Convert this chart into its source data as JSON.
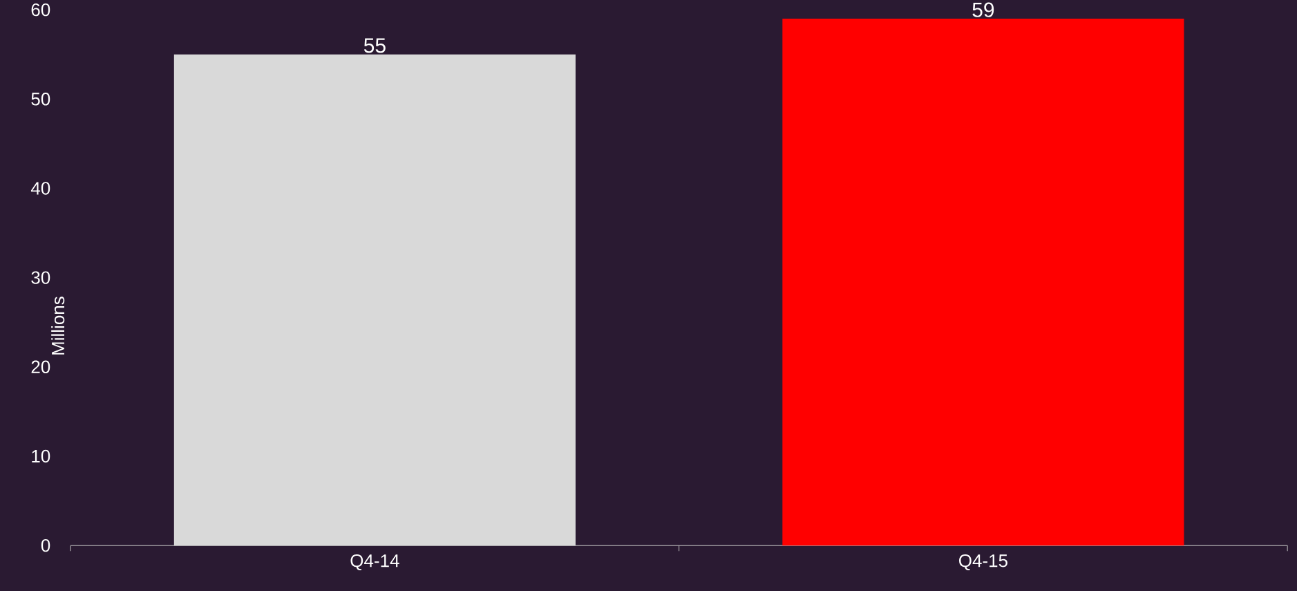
{
  "chart_data": {
    "type": "bar",
    "ylabel": "Millions",
    "categories": [
      "Q4-14",
      "Q4-15"
    ],
    "values": [
      55,
      59
    ],
    "colors": [
      "#d9d9d9",
      "#ff0000"
    ],
    "ylim": [
      0,
      60
    ],
    "yticks": [
      0,
      10,
      20,
      30,
      40,
      50,
      60
    ],
    "data_labels": true
  }
}
